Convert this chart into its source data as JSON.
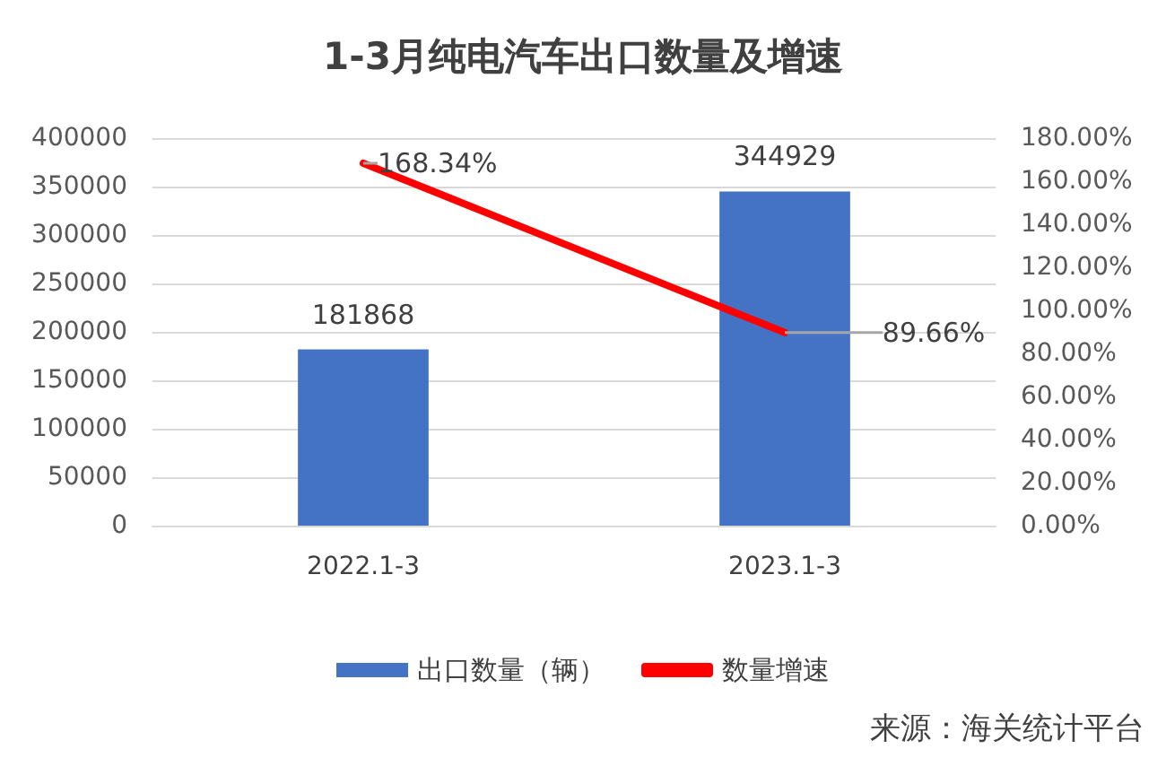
{
  "chart_data": {
    "type": "bar",
    "title": "1-3月纯电汽车出口数量及增速",
    "categories": [
      "2022.1-3",
      "2023.1-3"
    ],
    "series": [
      {
        "name": "出口数量（辆）",
        "color": "#4472c4",
        "values": [
          181868,
          344929
        ],
        "value_labels": [
          "181868",
          "344929"
        ]
      },
      {
        "name": "数量增速",
        "type": "line",
        "axis": "y2",
        "color": "#ff0000",
        "values": [
          168.34,
          89.66
        ],
        "value_labels": [
          "168.34%",
          "89.66%"
        ]
      }
    ],
    "ylim": [
      0,
      400000
    ],
    "yticks": [
      0,
      50000,
      100000,
      150000,
      200000,
      250000,
      300000,
      350000,
      400000
    ],
    "y2lim": [
      0,
      180
    ],
    "y2ticks": [
      {
        "value": 0,
        "label": "0.00%"
      },
      {
        "value": 20,
        "label": "20.00%"
      },
      {
        "value": 40,
        "label": "40.00%"
      },
      {
        "value": 60,
        "label": "60.00%"
      },
      {
        "value": 80,
        "label": "80.00%"
      },
      {
        "value": 100,
        "label": "100.00%"
      },
      {
        "value": 120,
        "label": "120.00%"
      },
      {
        "value": 140,
        "label": "140.00%"
      },
      {
        "value": 160,
        "label": "160.00%"
      },
      {
        "value": 180,
        "label": "180.00%"
      }
    ],
    "grid": "y",
    "legend": "bottom",
    "annotations": [
      "来源：海关统计平台"
    ]
  }
}
